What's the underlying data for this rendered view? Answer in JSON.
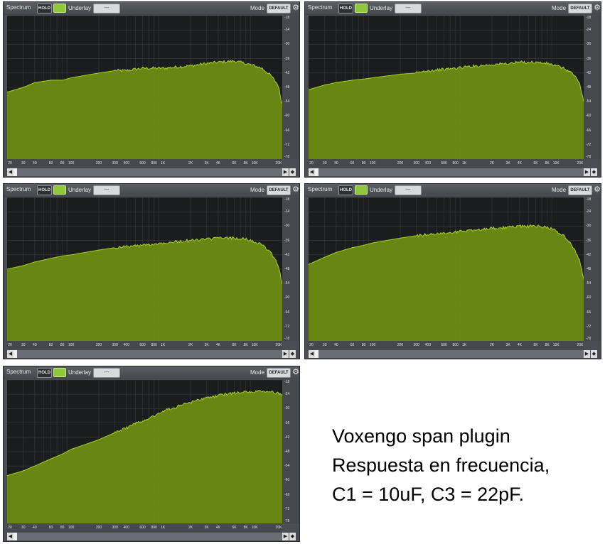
{
  "panel_ui": {
    "title": "Spectrum",
    "hold_label": "HOLD",
    "underlay_label": "Underlay",
    "underlay_value": "---",
    "mode_label": "Mode",
    "mode_value": "DEFAULT"
  },
  "axis": {
    "x_ticks": [
      "20",
      "30",
      "40",
      "60",
      "80",
      "100",
      "200",
      "300",
      "400",
      "600",
      "800",
      "1K",
      "2K",
      "3K",
      "4K",
      "6K",
      "8K",
      "10K",
      "20K"
    ],
    "x_values": [
      20,
      30,
      40,
      60,
      80,
      100,
      200,
      300,
      400,
      600,
      800,
      1000,
      2000,
      3000,
      4000,
      6000,
      8000,
      10000,
      20000
    ],
    "y_ticks": [
      "-18",
      "-24",
      "-30",
      "-36",
      "-42",
      "-48",
      "-54",
      "-60",
      "-66",
      "-72",
      "-78"
    ],
    "y_values": [
      -18,
      -24,
      -30,
      -36,
      -42,
      -48,
      -54,
      -60,
      -66,
      -72,
      -78
    ]
  },
  "colors": {
    "fill": "#6b8c14",
    "edge": "#a8d02a",
    "plot_bg": "#1b1c1e",
    "grid": "#3a3c40"
  },
  "caption": {
    "line1": "Voxengo span plugin",
    "line2": "Respuesta en frecuencia,",
    "line3": "C1 = 10uF, C3 = 22pF."
  },
  "chart_data": [
    {
      "type": "area",
      "x": [
        20,
        30,
        40,
        60,
        80,
        100,
        200,
        300,
        400,
        600,
        800,
        1000,
        2000,
        3000,
        4000,
        6000,
        8000,
        10000,
        12000,
        15000,
        18000,
        20000
      ],
      "y": [
        -50,
        -48,
        -46,
        -45,
        -45,
        -44,
        -42,
        -41,
        -41,
        -40,
        -40,
        -40,
        -39,
        -38,
        -37.5,
        -37,
        -38,
        -39,
        -40,
        -43,
        -47,
        -55
      ],
      "xlim": [
        20,
        20000
      ],
      "ylim": [
        -78,
        -18
      ],
      "xscale": "log",
      "grid": true
    },
    {
      "type": "area",
      "x": [
        20,
        30,
        40,
        60,
        80,
        100,
        200,
        300,
        400,
        600,
        800,
        1000,
        2000,
        3000,
        4000,
        6000,
        8000,
        10000,
        12000,
        15000,
        18000,
        20000
      ],
      "y": [
        -49,
        -47,
        -46,
        -45,
        -44.5,
        -44,
        -42.5,
        -42,
        -41,
        -40.5,
        -40,
        -39.5,
        -38.5,
        -38,
        -37.5,
        -37.5,
        -38,
        -39,
        -40,
        -42,
        -46,
        -54
      ],
      "xlim": [
        20,
        20000
      ],
      "ylim": [
        -78,
        -18
      ],
      "xscale": "log",
      "grid": true
    },
    {
      "type": "area",
      "x": [
        20,
        30,
        40,
        60,
        80,
        100,
        200,
        300,
        400,
        600,
        800,
        1000,
        2000,
        3000,
        4000,
        6000,
        8000,
        10000,
        12000,
        15000,
        18000,
        20000
      ],
      "y": [
        -48,
        -46.5,
        -45,
        -43.5,
        -42.5,
        -42,
        -40,
        -39,
        -38.5,
        -38,
        -37.5,
        -37,
        -36,
        -35.5,
        -35,
        -35,
        -35.5,
        -36.5,
        -38,
        -41,
        -46,
        -54
      ],
      "xlim": [
        20,
        20000
      ],
      "ylim": [
        -78,
        -18
      ],
      "xscale": "log",
      "grid": true
    },
    {
      "type": "area",
      "x": [
        20,
        30,
        40,
        60,
        80,
        100,
        200,
        300,
        400,
        600,
        800,
        1000,
        2000,
        3000,
        4000,
        6000,
        8000,
        10000,
        12000,
        15000,
        18000,
        20000
      ],
      "y": [
        -46,
        -43,
        -41,
        -39,
        -38,
        -37,
        -35,
        -34,
        -33.5,
        -33,
        -32.5,
        -32,
        -31,
        -30.5,
        -30,
        -30,
        -30.5,
        -32,
        -34,
        -38,
        -44,
        -52
      ],
      "xlim": [
        20,
        20000
      ],
      "ylim": [
        -78,
        -18
      ],
      "xscale": "log",
      "grid": true
    },
    {
      "type": "area",
      "x": [
        20,
        30,
        40,
        60,
        80,
        100,
        200,
        300,
        400,
        600,
        800,
        1000,
        2000,
        3000,
        4000,
        6000,
        8000,
        10000,
        12000,
        15000,
        18000,
        20000
      ],
      "y": [
        -58,
        -56,
        -54,
        -51,
        -49,
        -47,
        -43,
        -40,
        -38,
        -35,
        -33,
        -31,
        -27.5,
        -25.5,
        -24.5,
        -23.5,
        -23,
        -23,
        -23,
        -23,
        -23.5,
        -24
      ],
      "xlim": [
        20,
        20000
      ],
      "ylim": [
        -78,
        -18
      ],
      "xscale": "log",
      "grid": true
    }
  ]
}
